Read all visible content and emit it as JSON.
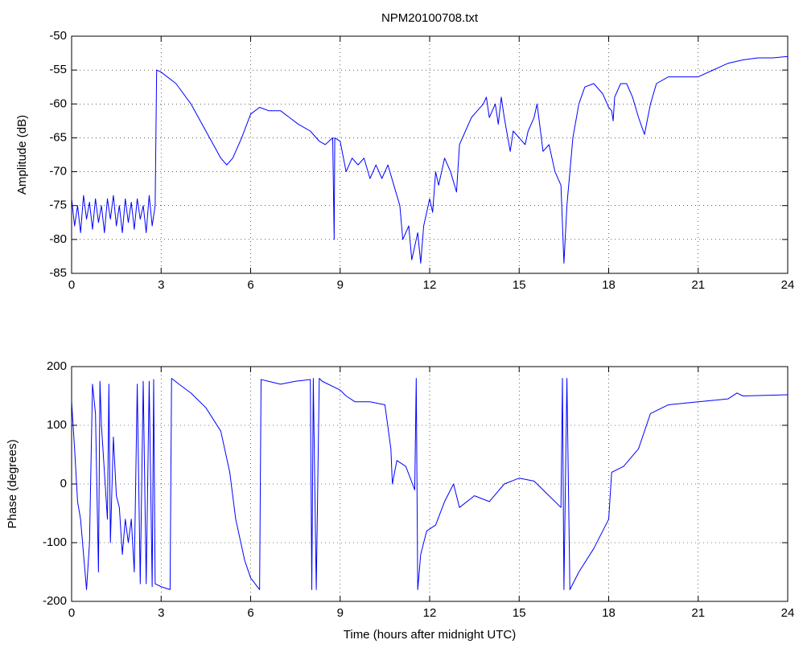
{
  "chart_data": [
    {
      "type": "line",
      "title": "NPM20100708.txt",
      "y_label": "Amplitude (dB)",
      "color": "#0000ff",
      "grid": true,
      "xlim": [
        0,
        24
      ],
      "xticks": [
        0,
        3,
        6,
        9,
        12,
        15,
        18,
        21,
        24
      ],
      "ylim": [
        -85,
        -50
      ],
      "yticks": [
        -85,
        -80,
        -75,
        -70,
        -65,
        -60,
        -55,
        -50
      ],
      "x": [
        0,
        0.1,
        0.2,
        0.3,
        0.4,
        0.5,
        0.6,
        0.7,
        0.8,
        0.9,
        1.0,
        1.1,
        1.2,
        1.3,
        1.4,
        1.5,
        1.6,
        1.7,
        1.8,
        1.9,
        2.0,
        2.1,
        2.2,
        2.3,
        2.4,
        2.5,
        2.6,
        2.7,
        2.8,
        2.85,
        3.0,
        3.5,
        4.0,
        4.5,
        5.0,
        5.2,
        5.4,
        5.7,
        6.0,
        6.3,
        6.6,
        7.0,
        7.3,
        7.6,
        8.0,
        8.3,
        8.5,
        8.75,
        8.8,
        8.82,
        9.0,
        9.2,
        9.4,
        9.6,
        9.8,
        10.0,
        10.2,
        10.4,
        10.6,
        10.8,
        11.0,
        11.1,
        11.3,
        11.4,
        11.6,
        11.7,
        11.8,
        12.0,
        12.1,
        12.2,
        12.3,
        12.5,
        12.7,
        12.9,
        13.0,
        13.2,
        13.4,
        13.6,
        13.8,
        13.9,
        14.0,
        14.2,
        14.3,
        14.4,
        14.5,
        14.7,
        14.8,
        15.0,
        15.2,
        15.3,
        15.5,
        15.6,
        15.8,
        16.0,
        16.2,
        16.4,
        16.5,
        16.6,
        16.8,
        17.0,
        17.2,
        17.5,
        17.8,
        18.0,
        18.1,
        18.15,
        18.2,
        18.4,
        18.6,
        18.8,
        19.0,
        19.2,
        19.4,
        19.6,
        20.0,
        20.5,
        21.0,
        21.5,
        22.0,
        22.5,
        23.0,
        23.5,
        24.0
      ],
      "values": [
        -74,
        -78,
        -75,
        -79,
        -73.5,
        -77,
        -74.5,
        -78.5,
        -74,
        -77.5,
        -75,
        -79,
        -74,
        -77,
        -73.5,
        -78,
        -75,
        -79,
        -74,
        -77.5,
        -74.5,
        -78.5,
        -74,
        -77,
        -75,
        -79,
        -73.5,
        -78,
        -75,
        -55,
        -55.3,
        -57,
        -60,
        -64,
        -68,
        -69,
        -68,
        -65,
        -61.5,
        -60.5,
        -61,
        -61,
        -62,
        -63,
        -64,
        -65.5,
        -66,
        -65,
        -80,
        -65,
        -65.5,
        -70,
        -68,
        -69,
        -68,
        -71,
        -69,
        -71,
        -69,
        -72,
        -75,
        -80,
        -78,
        -83,
        -79,
        -83.5,
        -78,
        -74,
        -76,
        -70,
        -72,
        -68,
        -70,
        -73,
        -66,
        -64,
        -62,
        -61,
        -60,
        -59,
        -62,
        -60,
        -63,
        -59,
        -62,
        -67,
        -64,
        -65,
        -66,
        -64,
        -62,
        -60,
        -67,
        -66,
        -70,
        -72,
        -83.5,
        -75,
        -65,
        -60,
        -57.5,
        -57,
        -58.5,
        -60.5,
        -61,
        -62.5,
        -59,
        -57,
        -57,
        -59,
        -62,
        -64.5,
        -60,
        -57,
        -56,
        -56,
        -56,
        -55,
        -54,
        -53.5,
        -53.2,
        -53.2,
        -53
      ]
    },
    {
      "type": "line",
      "y_label": "Phase (degrees)",
      "x_label": "Time (hours after midnight UTC)",
      "color": "#0000ff",
      "grid": true,
      "xlim": [
        0,
        24
      ],
      "xticks": [
        0,
        3,
        6,
        9,
        12,
        15,
        18,
        21,
        24
      ],
      "ylim": [
        -200,
        200
      ],
      "yticks": [
        -200,
        -100,
        0,
        100,
        200
      ],
      "x": [
        0,
        0.1,
        0.2,
        0.3,
        0.4,
        0.5,
        0.6,
        0.7,
        0.8,
        0.9,
        0.95,
        1.0,
        1.1,
        1.2,
        1.25,
        1.3,
        1.4,
        1.5,
        1.6,
        1.7,
        1.8,
        1.9,
        2.0,
        2.1,
        2.2,
        2.3,
        2.4,
        2.5,
        2.6,
        2.7,
        2.75,
        2.8,
        3.0,
        3.3,
        3.35,
        3.6,
        4.0,
        4.5,
        5.0,
        5.3,
        5.5,
        5.8,
        6.0,
        6.3,
        6.35,
        6.6,
        7.0,
        7.5,
        8.0,
        8.05,
        8.1,
        8.2,
        8.3,
        8.4,
        9.0,
        9.2,
        9.5,
        10.0,
        10.5,
        10.7,
        10.75,
        10.9,
        11.2,
        11.5,
        11.55,
        11.6,
        11.7,
        11.9,
        12.2,
        12.5,
        12.8,
        13.0,
        13.5,
        14.0,
        14.5,
        15.0,
        15.5,
        16.0,
        16.4,
        16.45,
        16.5,
        16.6,
        16.7,
        17.0,
        17.5,
        18.0,
        18.1,
        18.5,
        19.0,
        19.4,
        20.0,
        21.0,
        22.0,
        22.3,
        22.5,
        24.0
      ],
      "values": [
        140,
        60,
        -30,
        -60,
        -120,
        -180,
        -100,
        170,
        120,
        -150,
        175,
        100,
        20,
        -60,
        170,
        -100,
        80,
        -20,
        -40,
        -120,
        -60,
        -100,
        -60,
        -150,
        170,
        -170,
        175,
        -170,
        175,
        -175,
        178,
        -170,
        -175,
        -180,
        180,
        170,
        155,
        130,
        90,
        20,
        -60,
        -130,
        -160,
        -180,
        178,
        175,
        170,
        175,
        178,
        -180,
        180,
        -180,
        180,
        175,
        160,
        150,
        140,
        140,
        135,
        60,
        0,
        40,
        30,
        -10,
        180,
        -180,
        -120,
        -80,
        -70,
        -30,
        0,
        -40,
        -20,
        -30,
        0,
        10,
        5,
        -20,
        -40,
        180,
        -180,
        180,
        -180,
        -150,
        -110,
        -60,
        20,
        30,
        60,
        120,
        135,
        140,
        145,
        155,
        150,
        152
      ]
    }
  ]
}
